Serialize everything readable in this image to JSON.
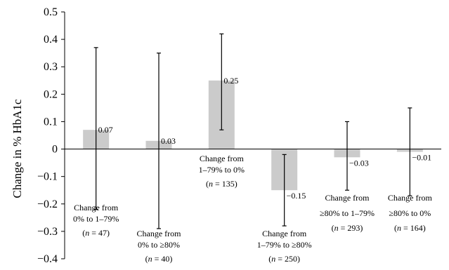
{
  "chart_data": {
    "type": "bar",
    "title": "",
    "ylabel": "Change in % HbA1c",
    "ylim": [
      -0.4,
      0.5
    ],
    "yticks": [
      "−0.4",
      "−0.3",
      "−0.2",
      "−0.1",
      "0",
      "0.1",
      "0.2",
      "0.3",
      "0.4",
      "0.5"
    ],
    "ytick_values": [
      -0.4,
      -0.3,
      -0.2,
      -0.1,
      0,
      0.1,
      0.2,
      0.3,
      0.4,
      0.5
    ],
    "grid": false,
    "colors": {
      "bar": "#cbcbcb",
      "axis": "#000000",
      "error": "#000000"
    },
    "bars": [
      {
        "value": 0.07,
        "label": "0.07",
        "error_low": -0.22,
        "error_high": 0.37,
        "category": [
          "Change from",
          "0% to 1–79%"
        ],
        "n": "47"
      },
      {
        "value": 0.03,
        "label": "0.03",
        "error_low": -0.29,
        "error_high": 0.35,
        "category": [
          "Change from",
          "0% to ≥80%"
        ],
        "n": "40"
      },
      {
        "value": 0.25,
        "label": "0.25",
        "error_low": 0.07,
        "error_high": 0.42,
        "category": [
          "Change from",
          "1–79% to 0%"
        ],
        "n": "135"
      },
      {
        "value": -0.15,
        "label": "−0.15",
        "error_low": -0.28,
        "error_high": -0.02,
        "category": [
          "Change from",
          "1–79% to ≥80%"
        ],
        "n": "250"
      },
      {
        "value": -0.03,
        "label": "−0.03",
        "error_low": -0.15,
        "error_high": 0.1,
        "category": [
          "Change from",
          "≥80% to 1–79%"
        ],
        "n": "293"
      },
      {
        "value": -0.01,
        "label": "−0.01",
        "error_low": -0.17,
        "error_high": 0.15,
        "category": [
          "Change from",
          "≥80% to 0%"
        ],
        "n": "164"
      }
    ]
  }
}
